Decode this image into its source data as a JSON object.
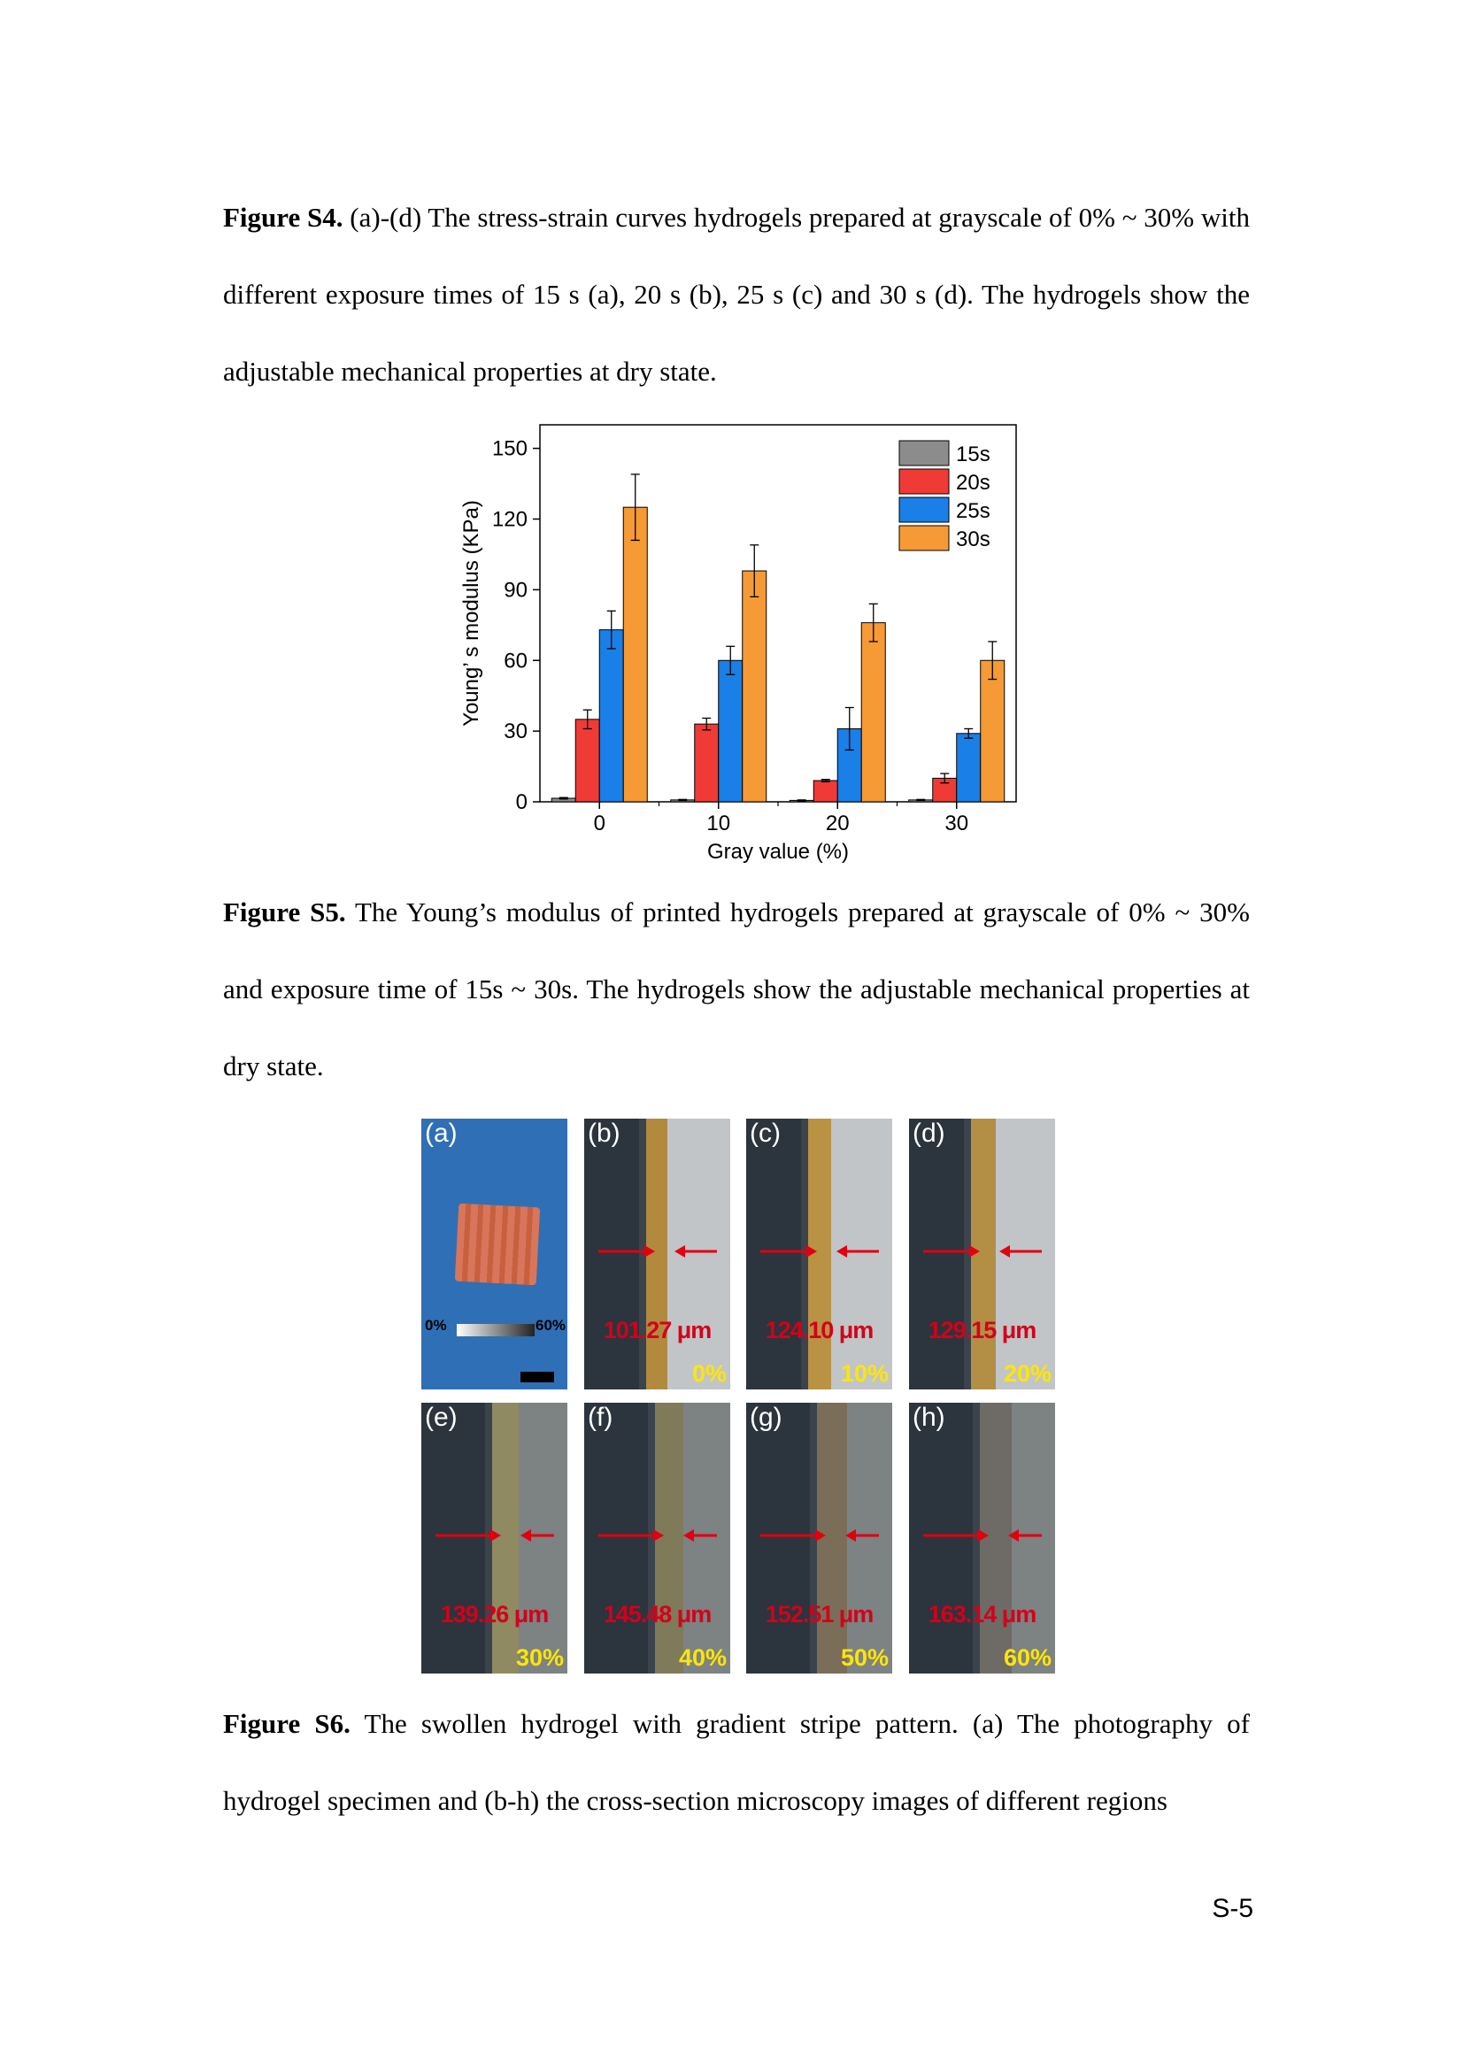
{
  "captions": {
    "s4": {
      "label": "Figure S4.",
      "text": " (a)-(d) The stress-strain curves hydrogels prepared at grayscale of 0% ~ 30% with different exposure times of 15 s (a), 20 s (b), 25 s (c) and 30 s (d). The hydrogels show the adjustable mechanical properties at dry state."
    },
    "s5": {
      "label": "Figure S5.",
      "text": " The Young’s modulus of printed hydrogels prepared at grayscale of 0% ~ 30% and exposure time of 15s ~ 30s. The hydrogels show the adjustable mechanical properties at dry state."
    },
    "s6": {
      "label": "Figure S6.",
      "text": " The swollen hydrogel with gradient stripe pattern. (a) The photography of hydrogel specimen and (b-h) the cross-section microscopy images of different regions"
    }
  },
  "page_number": "S-5",
  "chart_data": {
    "type": "bar",
    "xlabel": "Gray value (%)",
    "ylabel": "Young’ s modulus (KPa)",
    "categories": [
      "0",
      "10",
      "20",
      "30"
    ],
    "ylim": [
      0,
      160
    ],
    "yticks": [
      "0",
      "30",
      "60",
      "90",
      "120",
      "150"
    ],
    "legend_position": "top-right",
    "series": [
      {
        "name": "15s",
        "color": "#8c8c8c",
        "values": [
          1.5,
          0.8,
          0.6,
          0.8
        ],
        "errors": [
          0.3,
          0.2,
          0.2,
          0.2
        ]
      },
      {
        "name": "20s",
        "color": "#f03a36",
        "values": [
          35,
          33,
          9,
          10
        ],
        "errors": [
          4,
          2.5,
          0.5,
          2
        ]
      },
      {
        "name": "25s",
        "color": "#1a7fe6",
        "values": [
          73,
          60,
          31,
          29
        ],
        "errors": [
          8,
          6,
          9,
          2
        ]
      },
      {
        "name": "30s",
        "color": "#f59a35",
        "values": [
          125,
          98,
          76,
          60
        ],
        "errors": [
          14,
          11,
          8,
          8
        ]
      }
    ]
  },
  "figure_s6": {
    "photo": {
      "label": "(a)",
      "gradient_start": "0%",
      "gradient_end": "60%"
    },
    "panels": [
      {
        "label": "(b)",
        "measurement": "101.27 μm",
        "gray": "0%"
      },
      {
        "label": "(c)",
        "measurement": "124.10 μm",
        "gray": "10%"
      },
      {
        "label": "(d)",
        "measurement": "129.15 μm",
        "gray": "20%"
      },
      {
        "label": "(e)",
        "measurement": "139.26 μm",
        "gray": "30%"
      },
      {
        "label": "(f)",
        "measurement": "145.48 μm",
        "gray": "40%"
      },
      {
        "label": "(g)",
        "measurement": "152.51 μm",
        "gray": "50%"
      },
      {
        "label": "(h)",
        "measurement": "163.14 μm",
        "gray": "60%"
      }
    ]
  }
}
